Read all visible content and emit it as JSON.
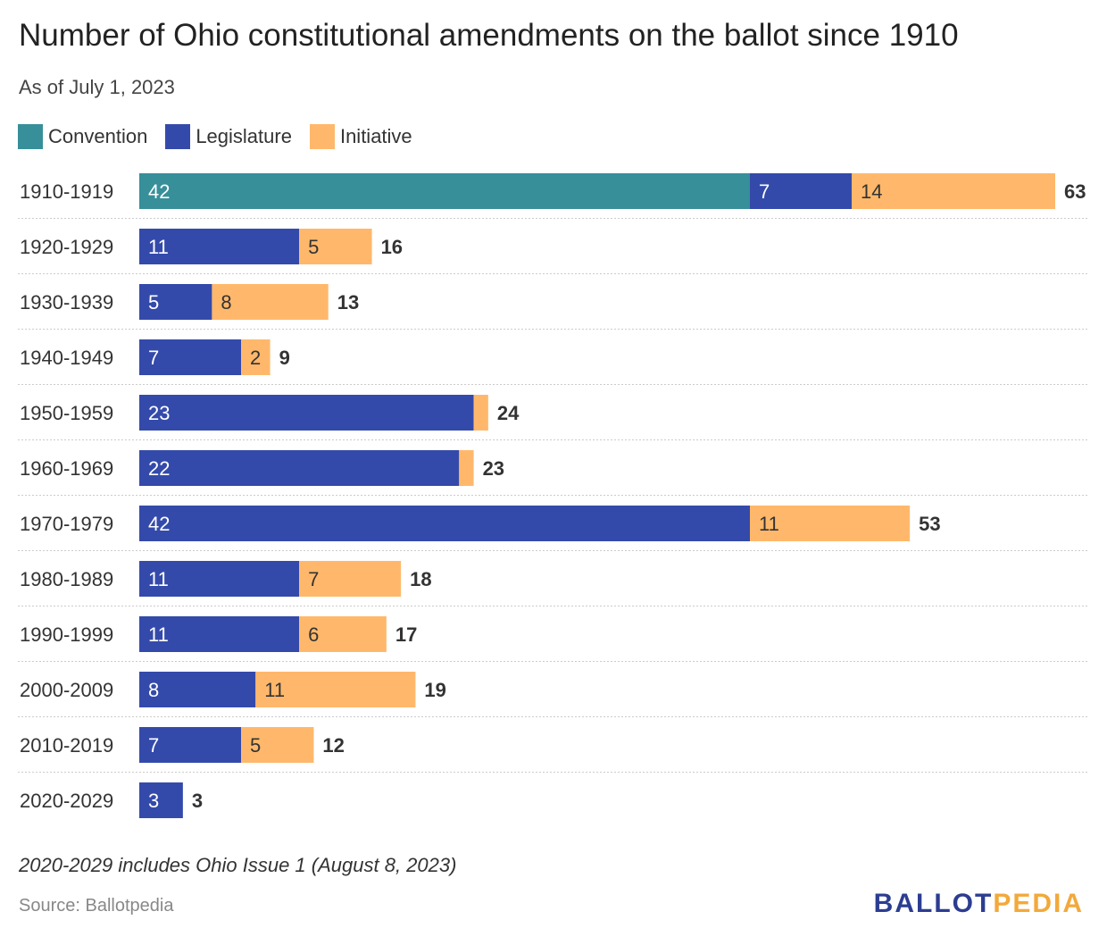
{
  "title": "Number of Ohio constitutional amendments on the ballot since 1910",
  "subtitle": "As of July 1, 2023",
  "note": "2020-2029 includes Ohio Issue 1 (August 8, 2023)",
  "source": "Source: Ballotpedia",
  "logo": {
    "part1": "BALLOT",
    "part2": "PEDIA",
    "color1": "#2c3d91",
    "color2": "#f2a93b"
  },
  "chart_data": {
    "type": "bar",
    "orientation": "horizontal",
    "stacked": true,
    "categories": [
      "1910-1919",
      "1920-1929",
      "1930-1939",
      "1940-1949",
      "1950-1959",
      "1960-1969",
      "1970-1979",
      "1980-1989",
      "1990-1999",
      "2000-2009",
      "2010-2019",
      "2020-2029"
    ],
    "series": [
      {
        "name": "Convention",
        "color": "#378f99",
        "values": [
          42,
          0,
          0,
          0,
          0,
          0,
          0,
          0,
          0,
          0,
          0,
          0
        ]
      },
      {
        "name": "Legislature",
        "color": "#344aaa",
        "values": [
          7,
          11,
          5,
          7,
          23,
          22,
          42,
          11,
          11,
          8,
          7,
          3
        ]
      },
      {
        "name": "Initiative",
        "color": "#ffb86b",
        "values": [
          14,
          5,
          8,
          2,
          1,
          1,
          11,
          7,
          6,
          11,
          5,
          0
        ]
      }
    ],
    "totals": [
      63,
      16,
      13,
      9,
      24,
      23,
      53,
      18,
      17,
      19,
      12,
      3
    ],
    "xlim": [
      0,
      63
    ],
    "legend": "top-left",
    "grid": false
  }
}
